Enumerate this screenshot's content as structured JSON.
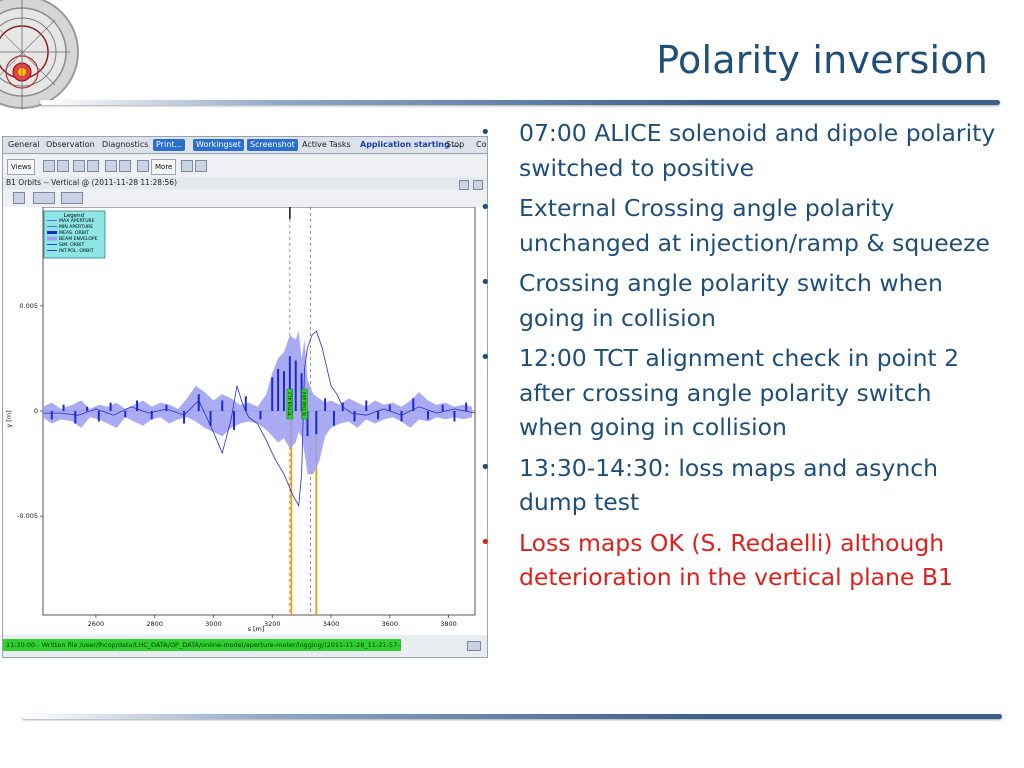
{
  "slide": {
    "title": "Polarity inversion",
    "bullets": [
      {
        "text": "07:00 ALICE solenoid and dipole polarity switched to positive",
        "color": "#1f4e79"
      },
      {
        "text": "External Crossing angle polarity unchanged at injection/ramp & squeeze",
        "color": "#1f4e79"
      },
      {
        "text": "Crossing angle polarity switch when going in collision",
        "color": "#1f4e79"
      },
      {
        "text": "12:00 TCT alignment check in point 2 after crossing angle polarity switch when going in collision",
        "color": "#1f4e79"
      },
      {
        "text": "13:30-14:30: loss maps and asynch dump test",
        "color": "#1f4e79"
      },
      {
        "text": "Loss maps OK (S. Redaelli) although deterioration in the vertical plane B1",
        "color": "#e0201c"
      }
    ]
  },
  "app": {
    "tabs": [
      "General",
      "Observation",
      "Diagnostics",
      "Print...",
      "Workingset",
      "Screenshot",
      "Active Tasks",
      "Application starting ...",
      "Stop",
      "Co"
    ],
    "toolbar": {
      "views_label": "Views",
      "more_label": "More"
    },
    "panel_title": "B1 Orbits -- Vertical @ (2011-11-28 11:28:56)",
    "status_text": "11:20:00 - Written file /user/lhcop/data/LHC_DATA/OP_DATA/online-model/aperture-meter/logging/(2011-11-28_11-21-57-396/2011-1..."
  },
  "chart_data": {
    "type": "line",
    "title": "",
    "xlabel": "s [m]",
    "ylabel": "y [m]",
    "xlim": [
      2420,
      3890
    ],
    "ylim": [
      -0.0097,
      0.0097
    ],
    "x_ticks": [
      2600,
      2800,
      3000,
      3200,
      3400,
      3600,
      3800
    ],
    "y_ticks": [
      0.005,
      0,
      -0.005
    ],
    "y_tick_labels": [
      "0.005",
      "0",
      "-0.005"
    ],
    "legend": {
      "title": "Legend",
      "entries": [
        "MAX APERTURE",
        "MIN APERTURE",
        "MEAS. ORBIT",
        "BEAM ENVELOPE",
        "SIM. ORBIT",
        "INT.POL. ORBIT"
      ],
      "position": "top-left"
    },
    "envelope": {
      "x": [
        2420,
        2450,
        2480,
        2520,
        2550,
        2580,
        2610,
        2640,
        2670,
        2700,
        2730,
        2760,
        2790,
        2820,
        2850,
        2880,
        2910,
        2940,
        2970,
        3000,
        3030,
        3060,
        3090,
        3120,
        3150,
        3180,
        3200,
        3220,
        3240,
        3260,
        3280,
        3290,
        3300,
        3310,
        3320,
        3340,
        3360,
        3380,
        3400,
        3430,
        3460,
        3490,
        3520,
        3550,
        3580,
        3610,
        3640,
        3670,
        3700,
        3730,
        3760,
        3790,
        3820,
        3850,
        3880
      ],
      "upper": [
        0.0002,
        0.0004,
        0.0001,
        0.0003,
        0.0005,
        0.0001,
        0.0003,
        0.0002,
        0.0004,
        0.0001,
        0.0003,
        0.0005,
        0.0002,
        0.0004,
        0.0003,
        0.0001,
        0.0006,
        0.0012,
        0.0009,
        0.0005,
        0.0008,
        0.0006,
        0.0003,
        0.0004,
        0.0002,
        0.0008,
        0.0018,
        0.0025,
        0.0028,
        0.0036,
        0.0034,
        0.0038,
        0.0025,
        0.0034,
        0.0015,
        0.0008,
        0.0006,
        0.0004,
        0.0005,
        0.0003,
        0.0006,
        0.0004,
        0.0002,
        0.0005,
        0.0003,
        0.0004,
        0.0002,
        0.0005,
        0.0009,
        0.0005,
        0.0003,
        0.0004,
        0.0002,
        0.0003,
        0.0002
      ],
      "lower": [
        -0.0003,
        -0.0006,
        -0.0004,
        -0.0005,
        -0.0008,
        -0.0003,
        -0.0004,
        -0.0006,
        -0.0008,
        -0.0003,
        -0.0005,
        -0.0007,
        -0.0004,
        -0.0003,
        -0.0006,
        -0.0004,
        -0.0003,
        -0.0005,
        -0.0008,
        -0.001,
        -0.0012,
        -0.0008,
        -0.0006,
        -0.0005,
        -0.0006,
        -0.0009,
        -0.0012,
        -0.0015,
        -0.0013,
        -0.0018,
        -0.0015,
        -0.001,
        -0.0012,
        -0.002,
        -0.003,
        -0.003,
        -0.0024,
        -0.0012,
        -0.0008,
        -0.0006,
        -0.0005,
        -0.0008,
        -0.0004,
        -0.0006,
        -0.0004,
        -0.0003,
        -0.0005,
        -0.0008,
        -0.0004,
        -0.0005,
        -0.0003,
        -0.0004,
        -0.0003,
        -0.0004,
        -0.0003
      ]
    },
    "meas_orbit": {
      "x": [
        2450,
        2490,
        2530,
        2570,
        2610,
        2650,
        2700,
        2740,
        2790,
        2840,
        2900,
        2950,
        2990,
        3030,
        3070,
        3110,
        3160,
        3200,
        3220,
        3240,
        3260,
        3280,
        3300,
        3320,
        3350,
        3380,
        3410,
        3440,
        3480,
        3520,
        3560,
        3600,
        3640,
        3680,
        3730,
        3780,
        3820,
        3860
      ],
      "y": [
        -0.0004,
        0.0003,
        -0.0006,
        0.0002,
        -0.0005,
        0.0004,
        -0.0003,
        0.0005,
        -0.0004,
        0.0003,
        -0.0006,
        0.0008,
        -0.0007,
        0.0005,
        -0.0009,
        0.0007,
        -0.0004,
        0.0016,
        0.002,
        0.0019,
        0.0026,
        0.0024,
        0.0018,
        -0.0012,
        -0.0011,
        0.0006,
        -0.0007,
        0.0004,
        -0.0005,
        0.0005,
        -0.0004,
        0.0003,
        -0.0005,
        0.0006,
        -0.0004,
        0.0003,
        -0.0005,
        0.0004
      ]
    },
    "sim_orbit": {
      "x": [
        2420,
        2480,
        2540,
        2600,
        2660,
        2720,
        2780,
        2840,
        2900,
        2950,
        3000,
        3030,
        3060,
        3080,
        3100,
        3120,
        3150,
        3180,
        3210,
        3240,
        3270,
        3290,
        3300,
        3310,
        3320,
        3335,
        3350,
        3370,
        3400,
        3420,
        3440,
        3470,
        3520,
        3580,
        3640,
        3700,
        3760,
        3820,
        3890
      ],
      "y": [
        -0.0001,
        -0.0001,
        -0.0002,
        0.0001,
        -0.0002,
        0.0002,
        -0.0001,
        0.0001,
        -0.0002,
        0.0005,
        -0.001,
        -0.002,
        -0.0004,
        0.0012,
        0.0003,
        -0.0003,
        -0.0006,
        -0.0014,
        -0.0023,
        -0.003,
        -0.004,
        -0.0045,
        -0.003,
        0.002,
        0.003,
        0.0036,
        0.0038,
        0.003,
        0.0012,
        0.0008,
        0.0002,
        -0.0001,
        -0.0002,
        0.0001,
        -0.0002,
        0.0002,
        -0.0001,
        0.0001,
        -0.0001
      ]
    },
    "markers": [
      {
        "x": 3260,
        "label": "TCTVB.4L2"
      },
      {
        "x": 3310,
        "label": "TCTVB.4R2"
      }
    ],
    "orange_lines": [
      3265,
      3350
    ],
    "dashed_lines": [
      3260,
      3330
    ],
    "grid": false,
    "colors": {
      "envelope": "#9c9cf2",
      "orbit": "#2a2ad0",
      "bars": "#1a2ad0",
      "orange": "#f0a000",
      "marker": "#2fd02f"
    }
  }
}
